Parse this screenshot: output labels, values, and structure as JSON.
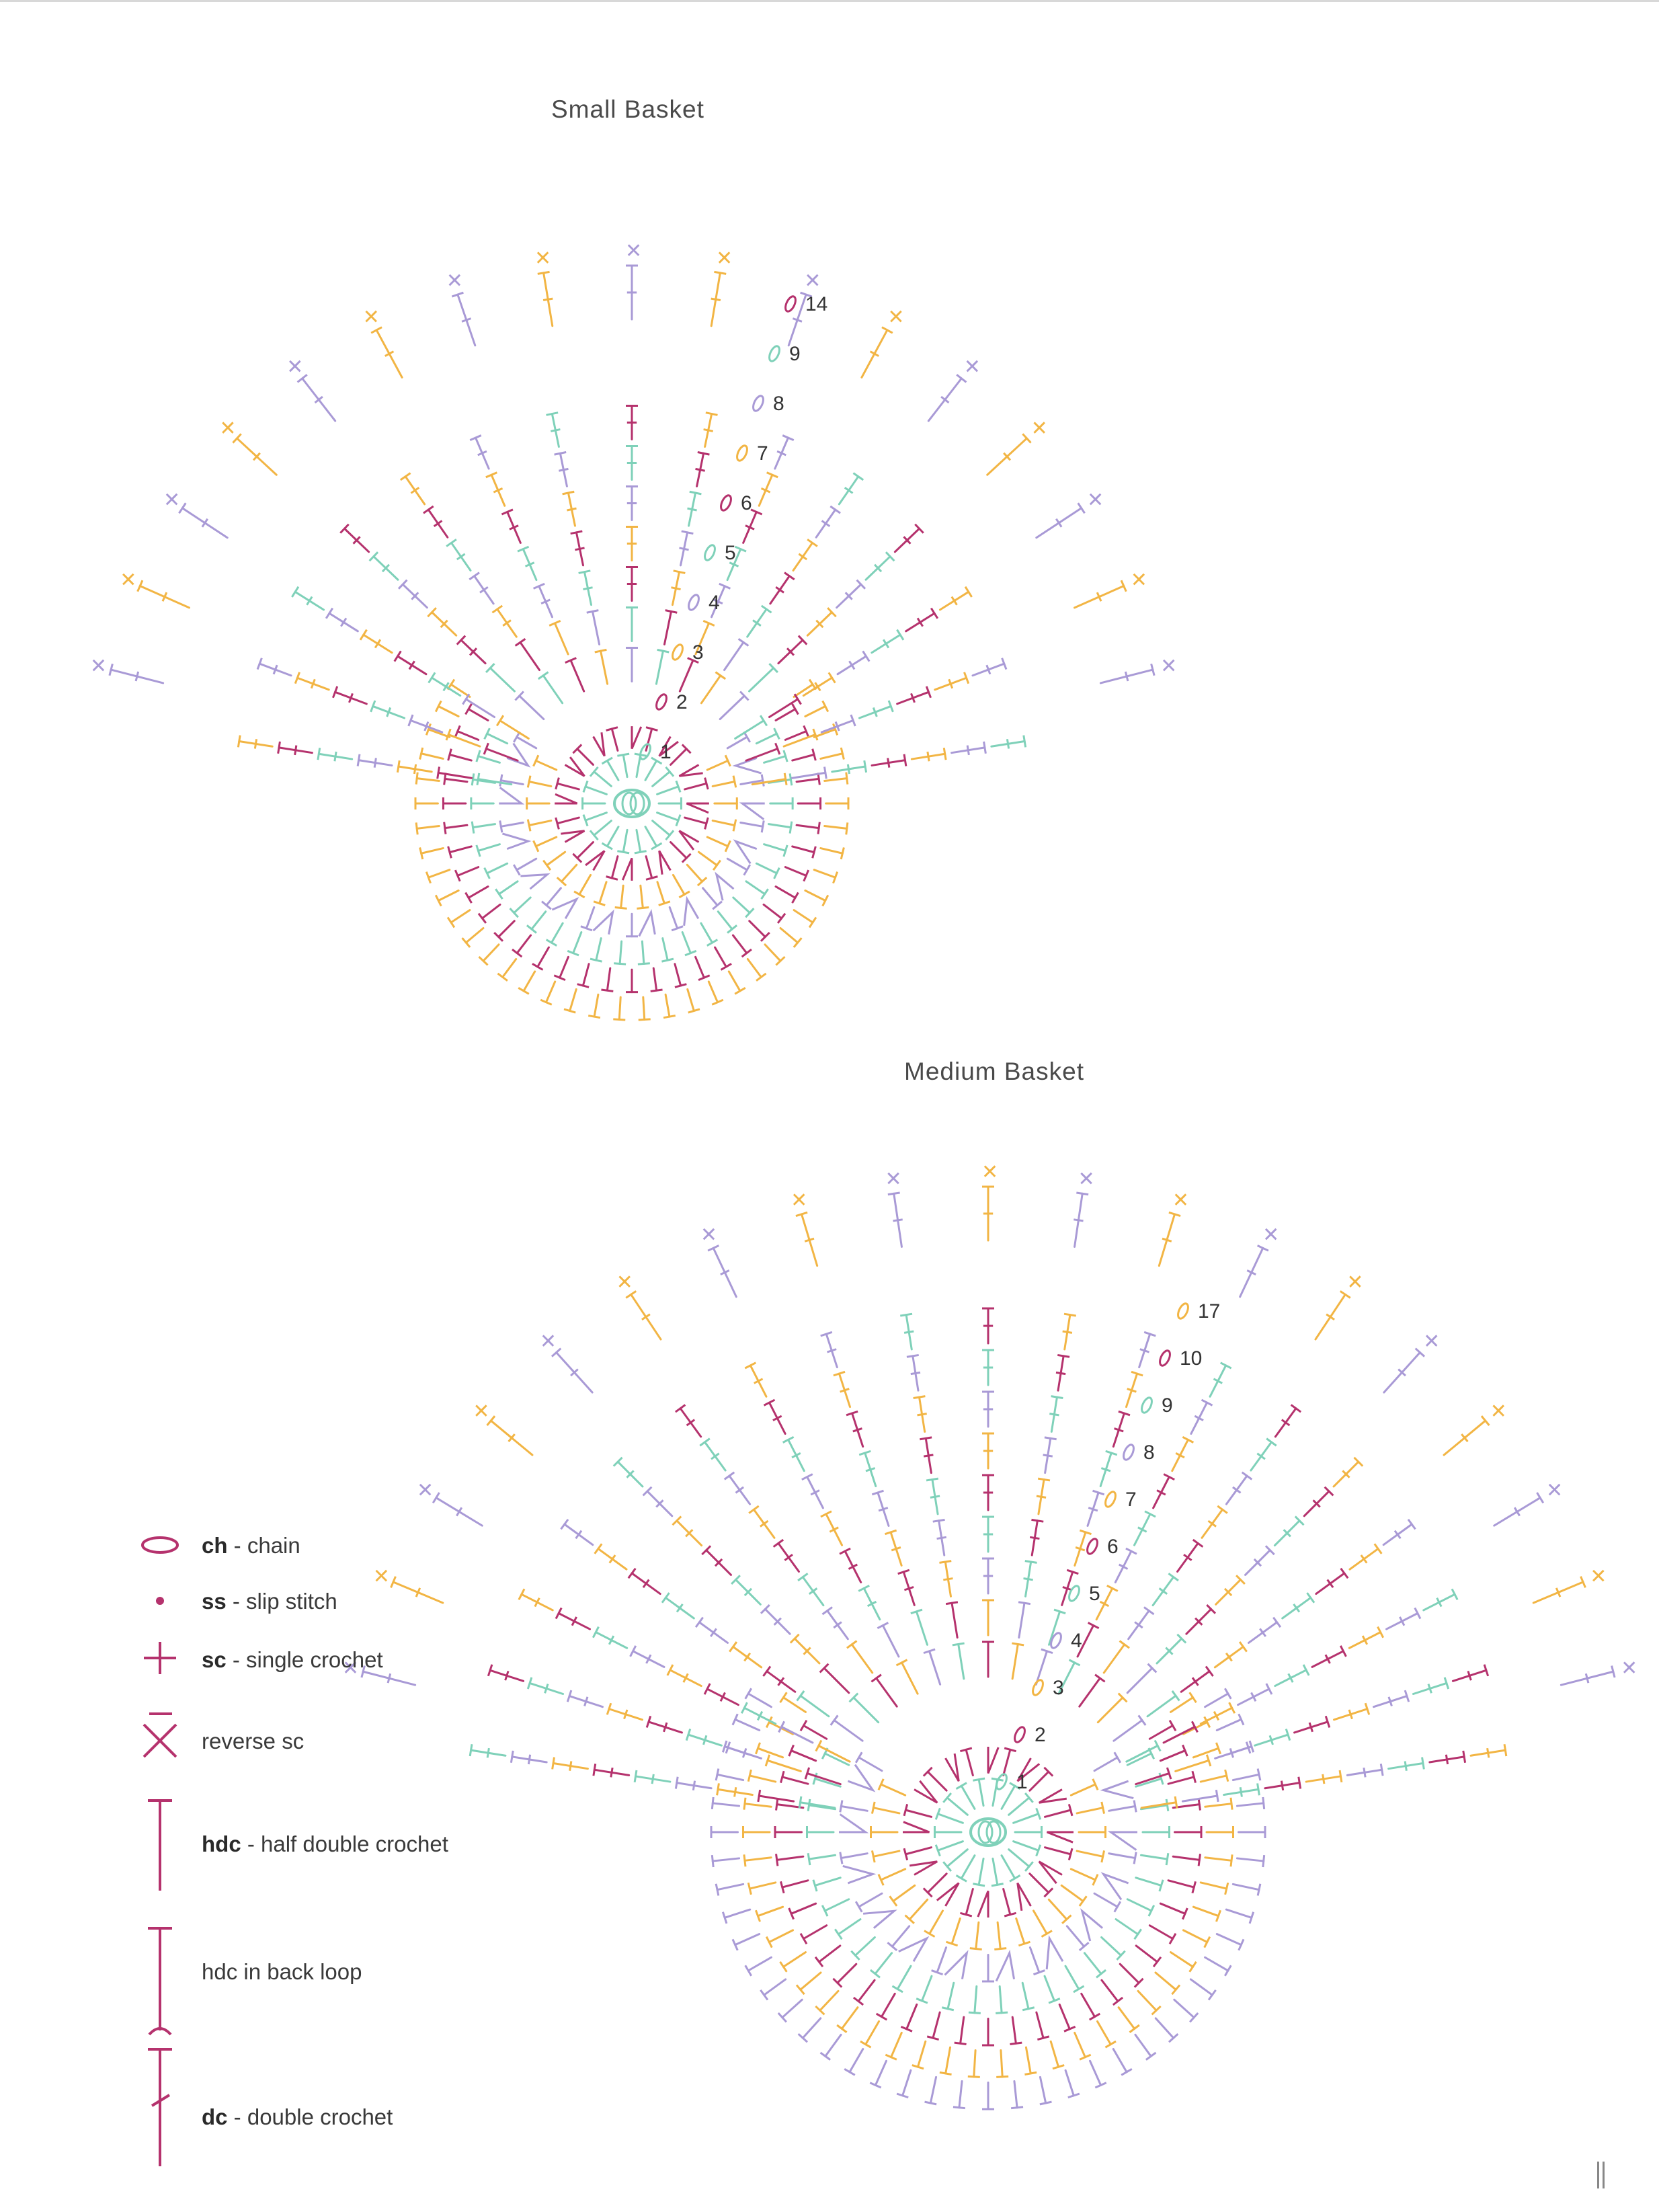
{
  "titles": {
    "small": "Small Basket",
    "medium": "Medium Basket"
  },
  "colors": {
    "teal": "#7fd1b9",
    "magenta": "#b5326d",
    "orange": "#f2b544",
    "purple": "#a99ad6"
  },
  "icons": {
    "chain": "chain-oval-icon",
    "slip_stitch": "slip-stitch-dot-icon",
    "single_crochet": "plus-cross-icon",
    "reverse_sc": "x-with-bar-icon",
    "hdc": "t-bar-icon",
    "hdc_back_loop": "t-bar-hook-icon",
    "dc": "t-bar-slash-icon"
  },
  "legend": [
    {
      "abbr": "ch",
      "sep": " - ",
      "desc": "chain"
    },
    {
      "abbr": "ss",
      "sep": " - ",
      "desc": "slip stitch"
    },
    {
      "abbr": "sc",
      "sep": " - ",
      "desc": "single crochet"
    },
    {
      "abbr": "",
      "sep": "",
      "desc": "reverse sc"
    },
    {
      "abbr": "hdc",
      "sep": " - ",
      "desc": "half double crochet"
    },
    {
      "abbr": "",
      "sep": "",
      "desc": "hdc in back loop"
    },
    {
      "abbr": "dc",
      "sep": " - ",
      "desc": "double crochet"
    }
  ],
  "small_basket": {
    "round_labels": [
      "1",
      "2",
      "3",
      "4",
      "5",
      "6",
      "7",
      "8",
      "9",
      "14"
    ],
    "base_rounds": 7,
    "side_rounds": 7,
    "rim_stitches": 17
  },
  "medium_basket": {
    "round_labels": [
      "1",
      "2",
      "3",
      "4",
      "5",
      "6",
      "7",
      "8",
      "9",
      "10",
      "17"
    ],
    "base_rounds": 8,
    "side_rounds": 9,
    "rim_stitches": 19
  }
}
